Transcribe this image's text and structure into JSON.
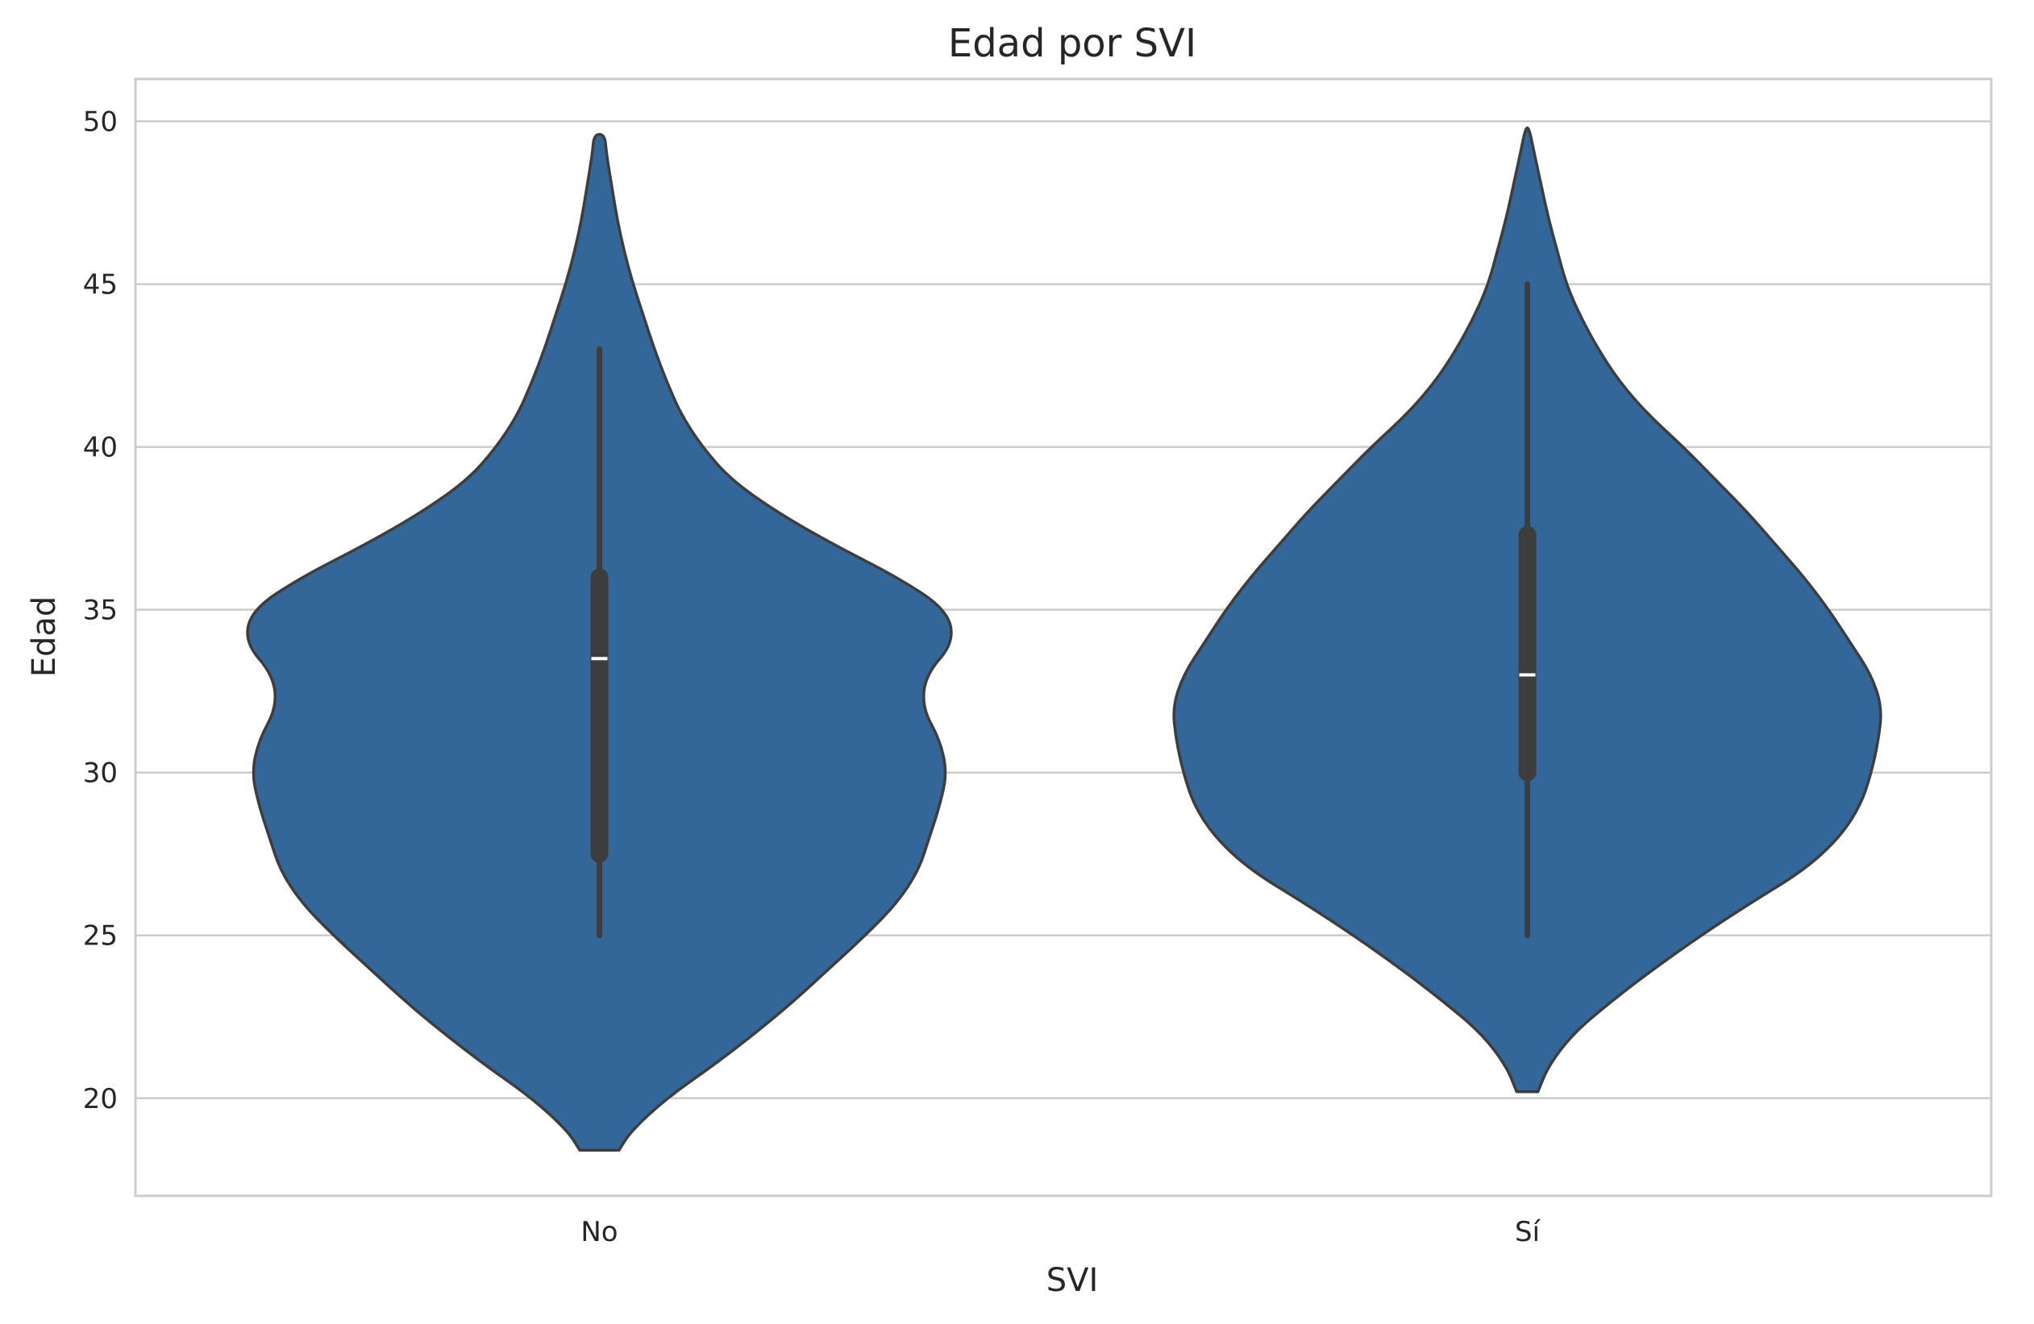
{
  "chart_data": {
    "type": "violin",
    "title": "Edad por SVI",
    "xlabel": "SVI",
    "ylabel": "Edad",
    "categories": [
      "No",
      "Sí"
    ],
    "ylim": [
      17,
      51.3
    ],
    "yticks": [
      20,
      25,
      30,
      35,
      40,
      45,
      50
    ],
    "grid": "horizontal",
    "colors": {
      "violin_fill": "#336699",
      "outline": "#3d3d3d",
      "box": "#3d3d3d",
      "median": "#ffffff",
      "grid": "#cccccc",
      "spine": "#cccccc"
    },
    "violins": [
      {
        "category": "No",
        "min": 18.4,
        "max": 49.6,
        "whisker_low": 25,
        "whisker_high": 43,
        "q1": 27.5,
        "median": 33.5,
        "q3": 36,
        "density": [
          [
            18.4,
            0.055
          ],
          [
            19.0,
            0.09
          ],
          [
            20.0,
            0.19
          ],
          [
            21.0,
            0.32
          ],
          [
            22.0,
            0.44
          ],
          [
            23.0,
            0.55
          ],
          [
            24.0,
            0.65
          ],
          [
            25.0,
            0.75
          ],
          [
            26.0,
            0.84
          ],
          [
            27.0,
            0.9
          ],
          [
            28.0,
            0.93
          ],
          [
            29.0,
            0.96
          ],
          [
            30.0,
            0.98
          ],
          [
            31.0,
            0.96
          ],
          [
            32.0,
            0.91
          ],
          [
            33.0,
            0.92
          ],
          [
            34.0,
            1.0
          ],
          [
            35.0,
            0.98
          ],
          [
            36.0,
            0.84
          ],
          [
            37.0,
            0.66
          ],
          [
            38.0,
            0.5
          ],
          [
            39.0,
            0.37
          ],
          [
            40.0,
            0.29
          ],
          [
            41.0,
            0.23
          ],
          [
            42.0,
            0.19
          ],
          [
            43.0,
            0.155
          ],
          [
            44.0,
            0.125
          ],
          [
            45.0,
            0.095
          ],
          [
            46.0,
            0.07
          ],
          [
            47.0,
            0.05
          ],
          [
            48.0,
            0.035
          ],
          [
            49.0,
            0.02
          ],
          [
            49.6,
            0.015
          ]
        ]
      },
      {
        "category": "Sí",
        "min": 20.2,
        "max": 49.8,
        "whisker_low": 25,
        "whisker_high": 45,
        "q1": 30,
        "median": 33,
        "q3": 37.3,
        "density": [
          [
            20.2,
            0.03
          ],
          [
            21.0,
            0.06
          ],
          [
            22.0,
            0.13
          ],
          [
            23.0,
            0.24
          ],
          [
            24.0,
            0.36
          ],
          [
            25.0,
            0.49
          ],
          [
            26.0,
            0.63
          ],
          [
            27.0,
            0.78
          ],
          [
            28.0,
            0.88
          ],
          [
            29.0,
            0.94
          ],
          [
            30.0,
            0.97
          ],
          [
            31.0,
            0.99
          ],
          [
            32.0,
            1.0
          ],
          [
            33.0,
            0.97
          ],
          [
            34.0,
            0.91
          ],
          [
            35.0,
            0.85
          ],
          [
            36.0,
            0.78
          ],
          [
            37.0,
            0.7
          ],
          [
            38.0,
            0.62
          ],
          [
            39.0,
            0.53
          ],
          [
            40.0,
            0.44
          ],
          [
            41.0,
            0.34
          ],
          [
            42.0,
            0.26
          ],
          [
            43.0,
            0.2
          ],
          [
            44.0,
            0.15
          ],
          [
            45.0,
            0.11
          ],
          [
            46.0,
            0.085
          ],
          [
            47.0,
            0.06
          ],
          [
            48.0,
            0.04
          ],
          [
            49.0,
            0.02
          ],
          [
            49.8,
            0.005
          ]
        ]
      }
    ]
  }
}
